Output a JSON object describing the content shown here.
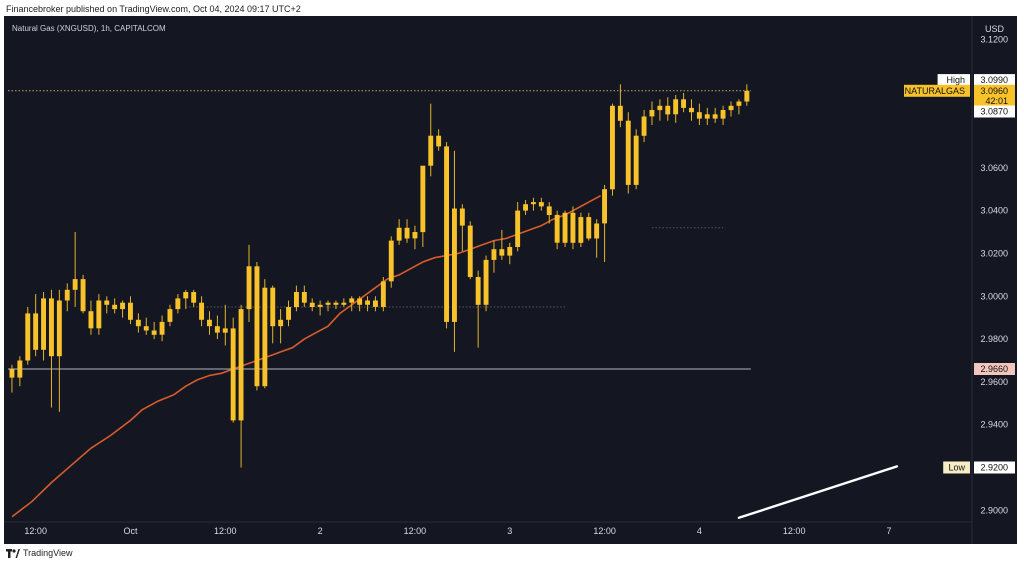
{
  "header": {
    "publisher_line": "Financebroker published on TradingView.com, Oct 04, 2024 09:17 UTC+2"
  },
  "footer": {
    "brand": "TradingView"
  },
  "chart_data": {
    "type": "candlestick",
    "title": "Natural Gas (XNGUSD), 1h, CAPITALCOM",
    "currency": "USD",
    "ylim": [
      2.895,
      3.13
    ],
    "yticks": [
      "3.1200",
      "3.0600",
      "3.0400",
      "3.0200",
      "3.0000",
      "2.9800",
      "2.9600",
      "2.9400",
      "2.9000"
    ],
    "xticks": [
      {
        "label": "12:00",
        "i": 3
      },
      {
        "label": "Oct",
        "i": 15
      },
      {
        "label": "12:00",
        "i": 27
      },
      {
        "label": "2",
        "i": 39
      },
      {
        "label": "12:00",
        "i": 51
      },
      {
        "label": "3",
        "i": 63
      },
      {
        "label": "12:00",
        "i": 75
      },
      {
        "label": "4",
        "i": 87
      },
      {
        "label": "12:00",
        "i": 99
      },
      {
        "label": "7",
        "i": 111
      }
    ],
    "x_slots": 122,
    "candles": [
      [
        2.966,
        2.968,
        2.955,
        2.962
      ],
      [
        2.962,
        2.972,
        2.958,
        2.97
      ],
      [
        2.97,
        2.995,
        2.968,
        2.992
      ],
      [
        2.992,
        3.001,
        2.972,
        2.975
      ],
      [
        2.975,
        3.002,
        2.97,
        2.999
      ],
      [
        2.999,
        3.003,
        2.948,
        2.972
      ],
      [
        2.972,
        3.003,
        2.946,
        2.998
      ],
      [
        2.998,
        3.006,
        2.993,
        3.003
      ],
      [
        3.003,
        3.03,
        2.995,
        3.008
      ],
      [
        3.008,
        3.01,
        2.992,
        2.993
      ],
      [
        2.993,
        2.998,
        2.982,
        2.985
      ],
      [
        2.985,
        3.001,
        2.982,
        2.998
      ],
      [
        2.998,
        3.0,
        2.992,
        2.996
      ],
      [
        2.996,
        2.999,
        2.992,
        2.994
      ],
      [
        2.994,
        2.998,
        2.99,
        2.997
      ],
      [
        2.997,
        3.0,
        2.987,
        2.989
      ],
      [
        2.989,
        2.992,
        2.983,
        2.986
      ],
      [
        2.986,
        2.99,
        2.982,
        2.984
      ],
      [
        2.984,
        2.988,
        2.98,
        2.982
      ],
      [
        2.982,
        2.991,
        2.979,
        2.988
      ],
      [
        2.988,
        2.996,
        2.986,
        2.994
      ],
      [
        2.994,
        3.001,
        2.992,
        2.999
      ],
      [
        2.999,
        3.003,
        2.994,
        3.002
      ],
      [
        3.002,
        3.003,
        2.995,
        2.997
      ],
      [
        2.997,
        3.0,
        2.986,
        2.989
      ],
      [
        2.989,
        2.993,
        2.982,
        2.986
      ],
      [
        2.986,
        2.991,
        2.98,
        2.983
      ],
      [
        2.983,
        2.996,
        2.977,
        2.985
      ],
      [
        2.985,
        2.99,
        2.941,
        2.942
      ],
      [
        2.942,
        2.996,
        2.92,
        2.994
      ],
      [
        2.994,
        3.024,
        2.988,
        3.014
      ],
      [
        3.014,
        3.016,
        2.956,
        2.958
      ],
      [
        2.958,
        3.008,
        2.957,
        3.004
      ],
      [
        3.004,
        3.005,
        2.978,
        2.986
      ],
      [
        2.986,
        2.994,
        2.978,
        2.989
      ],
      [
        2.989,
        2.998,
        2.986,
        2.995
      ],
      [
        2.995,
        3.005,
        2.993,
        3.002
      ],
      [
        3.002,
        3.005,
        2.995,
        2.997
      ],
      [
        2.997,
        2.999,
        2.993,
        2.995
      ],
      [
        2.995,
        2.998,
        2.991,
        2.996
      ],
      [
        2.996,
        2.998,
        2.993,
        2.997
      ],
      [
        2.997,
        2.998,
        2.994,
        2.996
      ],
      [
        2.996,
        2.999,
        2.995,
        2.997
      ],
      [
        2.997,
        3.0,
        2.993,
        2.999
      ],
      [
        2.999,
        3.0,
        2.993,
        2.996
      ],
      [
        2.996,
        3.0,
        2.993,
        2.998
      ],
      [
        2.998,
        3.0,
        2.993,
        2.995
      ],
      [
        2.995,
        3.009,
        2.993,
        3.007
      ],
      [
        3.007,
        3.028,
        3.004,
        3.026
      ],
      [
        3.026,
        3.036,
        3.024,
        3.032
      ],
      [
        3.032,
        3.036,
        3.025,
        3.027
      ],
      [
        3.027,
        3.033,
        3.022,
        3.03
      ],
      [
        3.03,
        3.06,
        3.023,
        3.061
      ],
      [
        3.061,
        3.09,
        3.056,
        3.075
      ],
      [
        3.075,
        3.078,
        3.068,
        3.07
      ],
      [
        3.07,
        3.072,
        2.985,
        2.988
      ],
      [
        2.988,
        3.068,
        2.974,
        3.041
      ],
      [
        3.041,
        3.043,
        3.021,
        3.033
      ],
      [
        3.033,
        3.035,
        3.008,
        3.009
      ],
      [
        3.009,
        3.012,
        2.976,
        2.996
      ],
      [
        2.996,
        3.019,
        2.993,
        3.017
      ],
      [
        3.017,
        3.026,
        3.011,
        3.022
      ],
      [
        3.022,
        3.031,
        3.017,
        3.019
      ],
      [
        3.019,
        3.025,
        3.015,
        3.023
      ],
      [
        3.023,
        3.044,
        3.021,
        3.04
      ],
      [
        3.04,
        3.045,
        3.038,
        3.043
      ],
      [
        3.043,
        3.046,
        3.04,
        3.044
      ],
      [
        3.044,
        3.046,
        3.04,
        3.042
      ],
      [
        3.042,
        3.044,
        3.034,
        3.038
      ],
      [
        3.038,
        3.04,
        3.022,
        3.025
      ],
      [
        3.025,
        3.04,
        3.023,
        3.039
      ],
      [
        3.039,
        3.042,
        3.022,
        3.025
      ],
      [
        3.025,
        3.039,
        3.023,
        3.037
      ],
      [
        3.037,
        3.039,
        3.026,
        3.027
      ],
      [
        3.027,
        3.036,
        3.018,
        3.034
      ],
      [
        3.034,
        3.052,
        3.016,
        3.05
      ],
      [
        3.05,
        3.09,
        3.047,
        3.089
      ],
      [
        3.089,
        3.099,
        3.079,
        3.082
      ],
      [
        3.082,
        3.086,
        3.048,
        3.052
      ],
      [
        3.052,
        3.078,
        3.05,
        3.075
      ],
      [
        3.075,
        3.087,
        3.072,
        3.084
      ],
      [
        3.084,
        3.091,
        3.08,
        3.087
      ],
      [
        3.087,
        3.092,
        3.082,
        3.089
      ],
      [
        3.089,
        3.093,
        3.082,
        3.085
      ],
      [
        3.085,
        3.094,
        3.081,
        3.092
      ],
      [
        3.092,
        3.095,
        3.086,
        3.088
      ],
      [
        3.088,
        3.092,
        3.082,
        3.086
      ],
      [
        3.086,
        3.09,
        3.08,
        3.083
      ],
      [
        3.083,
        3.088,
        3.08,
        3.085
      ],
      [
        3.085,
        3.088,
        3.081,
        3.083
      ],
      [
        3.083,
        3.089,
        3.08,
        3.087
      ],
      [
        3.087,
        3.091,
        3.084,
        3.089
      ],
      [
        3.089,
        3.092,
        3.085,
        3.091
      ],
      [
        3.091,
        3.099,
        3.089,
        3.096
      ]
    ],
    "ma": [
      [
        0,
        2.897
      ],
      [
        5,
        2.904
      ],
      [
        10,
        2.913
      ],
      [
        15,
        2.921
      ],
      [
        20,
        2.929
      ],
      [
        25,
        2.935
      ],
      [
        30,
        2.942
      ],
      [
        33,
        2.947
      ],
      [
        37,
        2.951
      ],
      [
        41,
        2.954
      ],
      [
        44,
        2.958
      ],
      [
        47,
        2.961
      ],
      [
        50,
        2.963
      ],
      [
        53,
        2.964
      ],
      [
        56,
        2.966
      ],
      [
        59,
        2.968
      ],
      [
        62,
        2.97
      ],
      [
        65,
        2.972
      ],
      [
        68,
        2.974
      ],
      [
        71,
        2.976
      ],
      [
        74,
        2.98
      ],
      [
        77,
        2.983
      ],
      [
        80,
        2.986
      ],
      [
        83,
        2.992
      ],
      [
        86,
        2.996
      ],
      [
        89,
        3.0
      ],
      [
        92,
        3.004
      ],
      [
        95,
        3.008
      ],
      [
        98,
        3.01
      ],
      [
        101,
        3.013
      ],
      [
        104,
        3.016
      ],
      [
        107,
        3.018
      ],
      [
        110,
        3.019
      ],
      [
        113,
        3.02
      ],
      [
        116,
        3.022
      ],
      [
        119,
        3.024
      ],
      [
        122,
        3.026
      ],
      [
        125,
        3.027
      ],
      [
        128,
        3.029
      ],
      [
        131,
        3.031
      ],
      [
        134,
        3.033
      ],
      [
        137,
        3.036
      ],
      [
        140,
        3.038
      ],
      [
        143,
        3.041
      ],
      [
        146,
        3.044
      ],
      [
        149,
        3.047
      ]
    ],
    "ma_slot_scale": 0.5,
    "hlines": [
      {
        "y": 2.966,
        "color": "#b0b6c3"
      },
      {
        "y": 3.096,
        "color": "#c2a15a",
        "dotted": true
      },
      {
        "y": 2.995,
        "x0": 22,
        "x1": 70,
        "color": "#555a66",
        "dotted": true
      },
      {
        "y": 3.032,
        "x0": 81,
        "x1": 90,
        "color": "#555a66",
        "dotted": true
      }
    ],
    "white_line": {
      "x0": 92,
      "y0": 2.8965,
      "x1": 112,
      "y1": 2.9205
    },
    "price_tags": [
      {
        "label": "High",
        "value": "3.0990",
        "y": 3.101,
        "bg": "#ffffff",
        "fg": "#111111",
        "label_bg": "#ffffff"
      },
      {
        "label": "NATURALGAS",
        "value": "3.0960",
        "sub": "42:01",
        "y": 3.096,
        "bg": "#f7c22a",
        "fg": "#111111",
        "label_bg": "#f7c22a"
      },
      {
        "label": "",
        "value": "3.0870",
        "y": 3.0863,
        "bg": "#ffffff",
        "fg": "#111111",
        "label_bg": ""
      },
      {
        "label": "",
        "value": "2.9660",
        "y": 2.966,
        "bg": "#f3c6bd",
        "fg": "#111111",
        "label_bg": ""
      },
      {
        "label": "Low",
        "value": "2.9200",
        "y": 2.92,
        "bg": "#ffffff",
        "fg": "#111111",
        "label_bg": "#f6edc6"
      }
    ],
    "colors": {
      "up": "#f7c22a",
      "down": "#f7c22a",
      "wick": "#e3b42a",
      "ma": "#d85c2a",
      "bg": "#141722",
      "axis_text": "#d8dbe3"
    }
  }
}
